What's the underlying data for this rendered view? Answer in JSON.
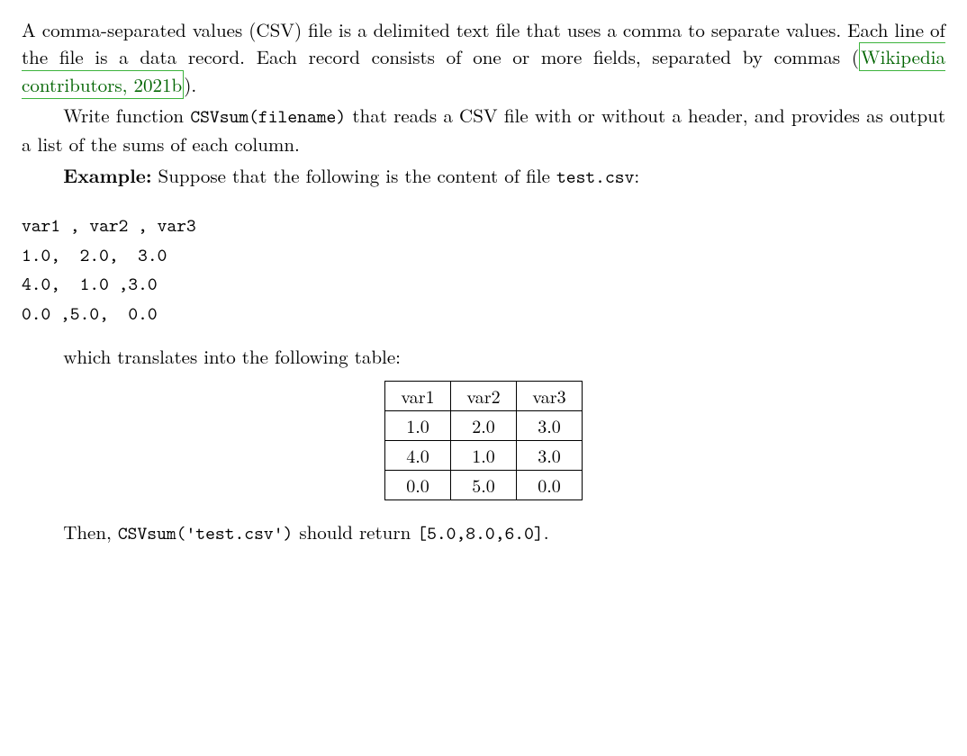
{
  "para1_pre": "A comma-separated values (CSV) file is a delimited text file that uses a comma to separate values. Each line of the file is a data record. Each record consists of one or more fields, separated by commas (",
  "citation_a": "Wikipedia contributors,",
  "citation_b": "2021b",
  "para1_post": ").",
  "para2_a": "Write function ",
  "para2_code": "CSVsum(filename)",
  "para2_b": " that reads a CSV file with or without a header, and provides as output a list of the sums of each column.",
  "para3_bold": "Example:",
  "para3_a": " Suppose that the following is the content of file ",
  "para3_code": "test.csv",
  "para3_b": ":",
  "csv_raw": "var1 , var2 , var3\n1.0,  2.0,  3.0\n4.0,  1.0 ,3.0\n0.0 ,5.0,  0.0",
  "para4": "which translates into the following table:",
  "table": {
    "columns": [
      "var1",
      "var2",
      "var3"
    ],
    "rows": [
      [
        "1.0",
        "2.0",
        "3.0"
      ],
      [
        "4.0",
        "1.0",
        "3.0"
      ],
      [
        "0.0",
        "5.0",
        "0.0"
      ]
    ],
    "border_color": "#000000",
    "cell_padding": "1px 12px"
  },
  "para5_a": "Then, ",
  "para5_code1": "CSVsum('test.csv')",
  "para5_b": " should return ",
  "para5_code2": "[5.0,8.0,6.0]",
  "para5_c": "."
}
